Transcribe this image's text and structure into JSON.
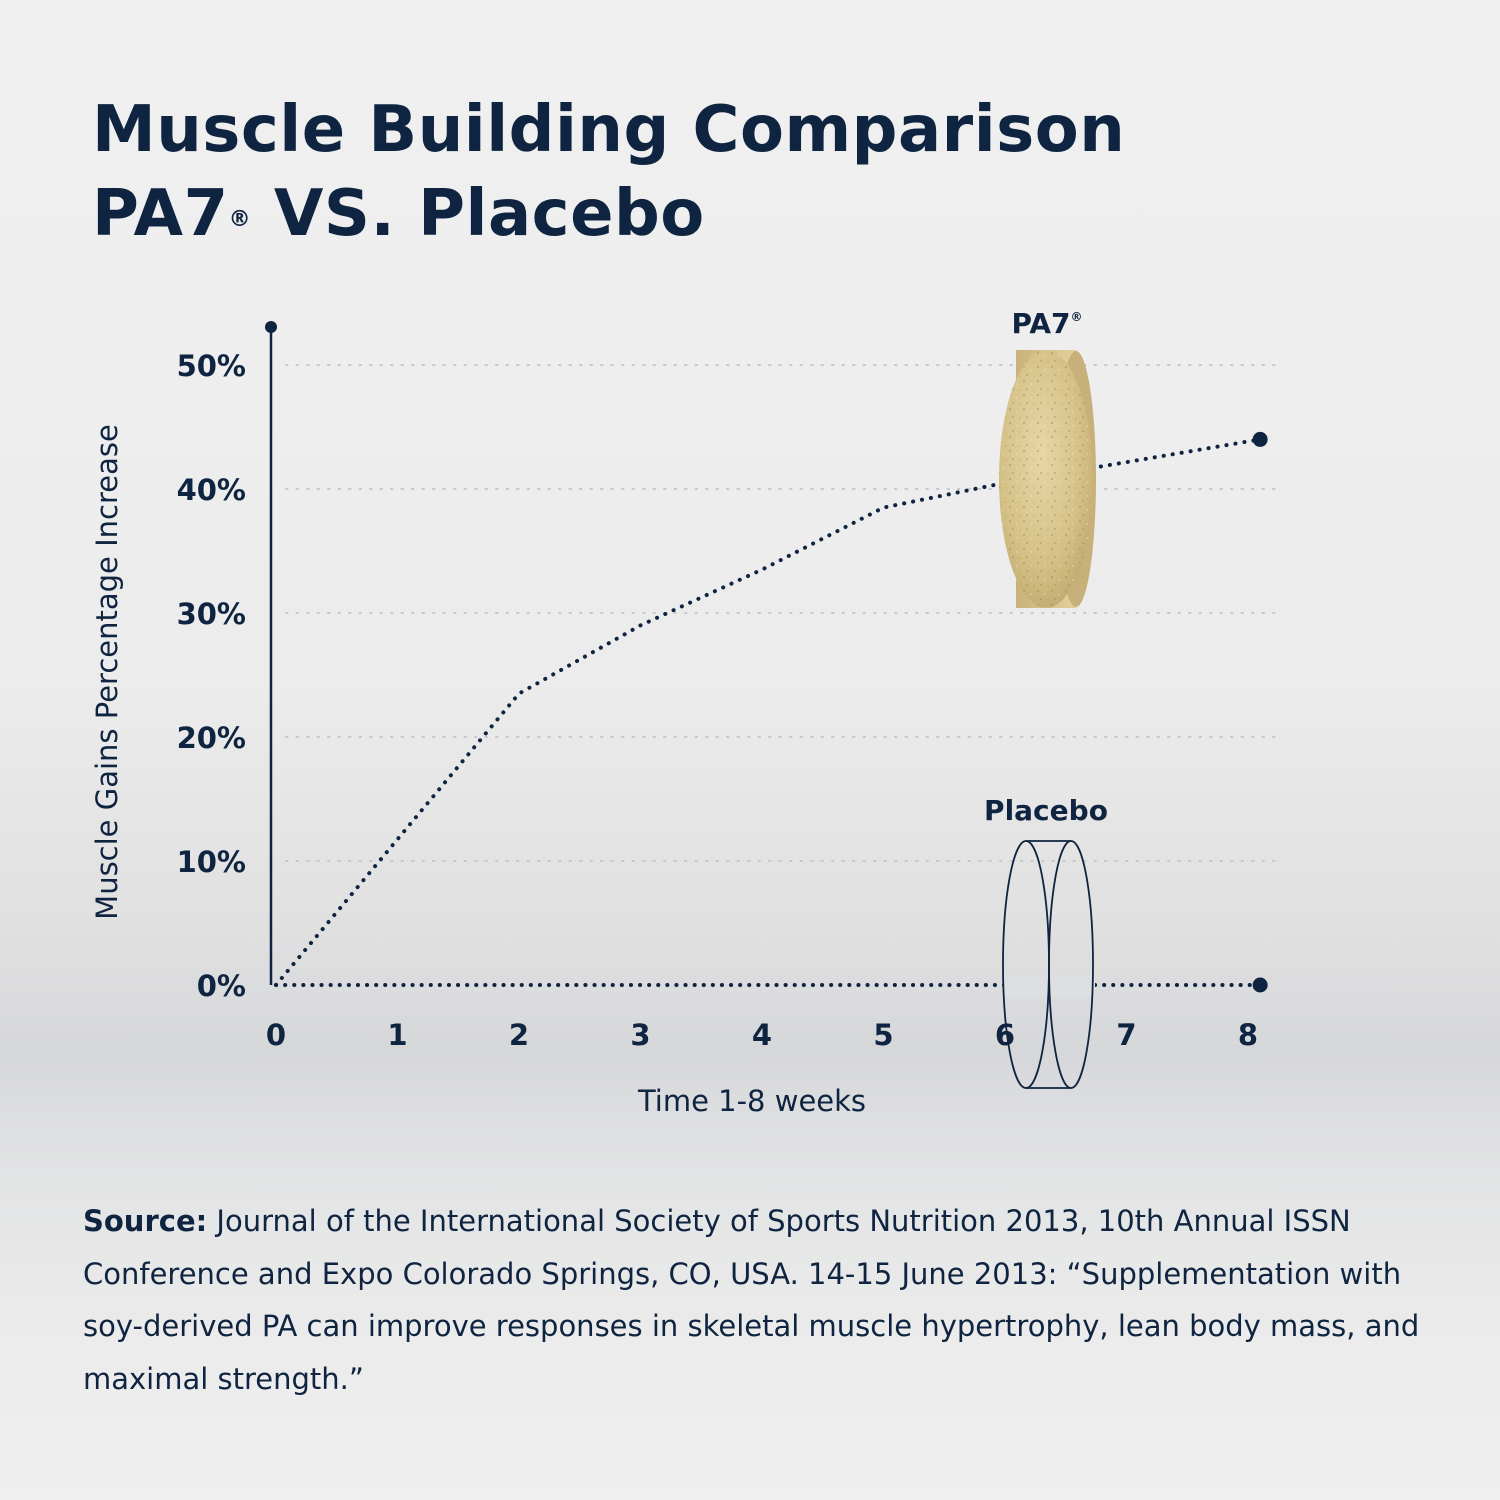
{
  "title": {
    "line1": "Muscle Building Comparison",
    "line2_prefix": "PA7",
    "line2_mark": "®",
    "line2_suffix": " VS. Placebo"
  },
  "chart_data": {
    "type": "line",
    "title": "Muscle Building Comparison PA7® VS. Placebo",
    "xlabel": "Time 1-8 weeks",
    "ylabel": "Muscle Gains Percentage Increase",
    "x_ticks": [
      "0",
      "1",
      "2",
      "3",
      "4",
      "5",
      "6",
      "7",
      "8"
    ],
    "y_ticks": [
      "0%",
      "10%",
      "20%",
      "30%",
      "40%",
      "50%"
    ],
    "xlim": [
      0,
      8.5
    ],
    "ylim": [
      0,
      52
    ],
    "grid": true,
    "line_style": "dotted",
    "series": [
      {
        "name": "PA7®",
        "x": [
          0,
          2,
          3,
          4,
          5,
          6,
          8.1
        ],
        "y": [
          0,
          23.5,
          29,
          33.5,
          38.5,
          40.5,
          44
        ]
      },
      {
        "name": "Placebo",
        "x": [
          0,
          8.1
        ],
        "y": [
          0,
          0
        ]
      }
    ]
  },
  "labels": {
    "pa7_name": "PA7",
    "pa7_mark": "®",
    "placebo_name": "Placebo"
  },
  "colors": {
    "navy": "#0f2440",
    "grid": "#c4c8cf",
    "tablet": "#d8c48e"
  },
  "source": {
    "label": "Source:",
    "text": " Journal of the International Society of Sports Nutrition 2013, 10th Annual ISSN Conference and Expo Colorado Springs, CO, USA. 14-15 June 2013: “Supplementation with soy-derived PA can improve responses in skeletal muscle hypertrophy, lean body mass, and maximal strength.”"
  }
}
